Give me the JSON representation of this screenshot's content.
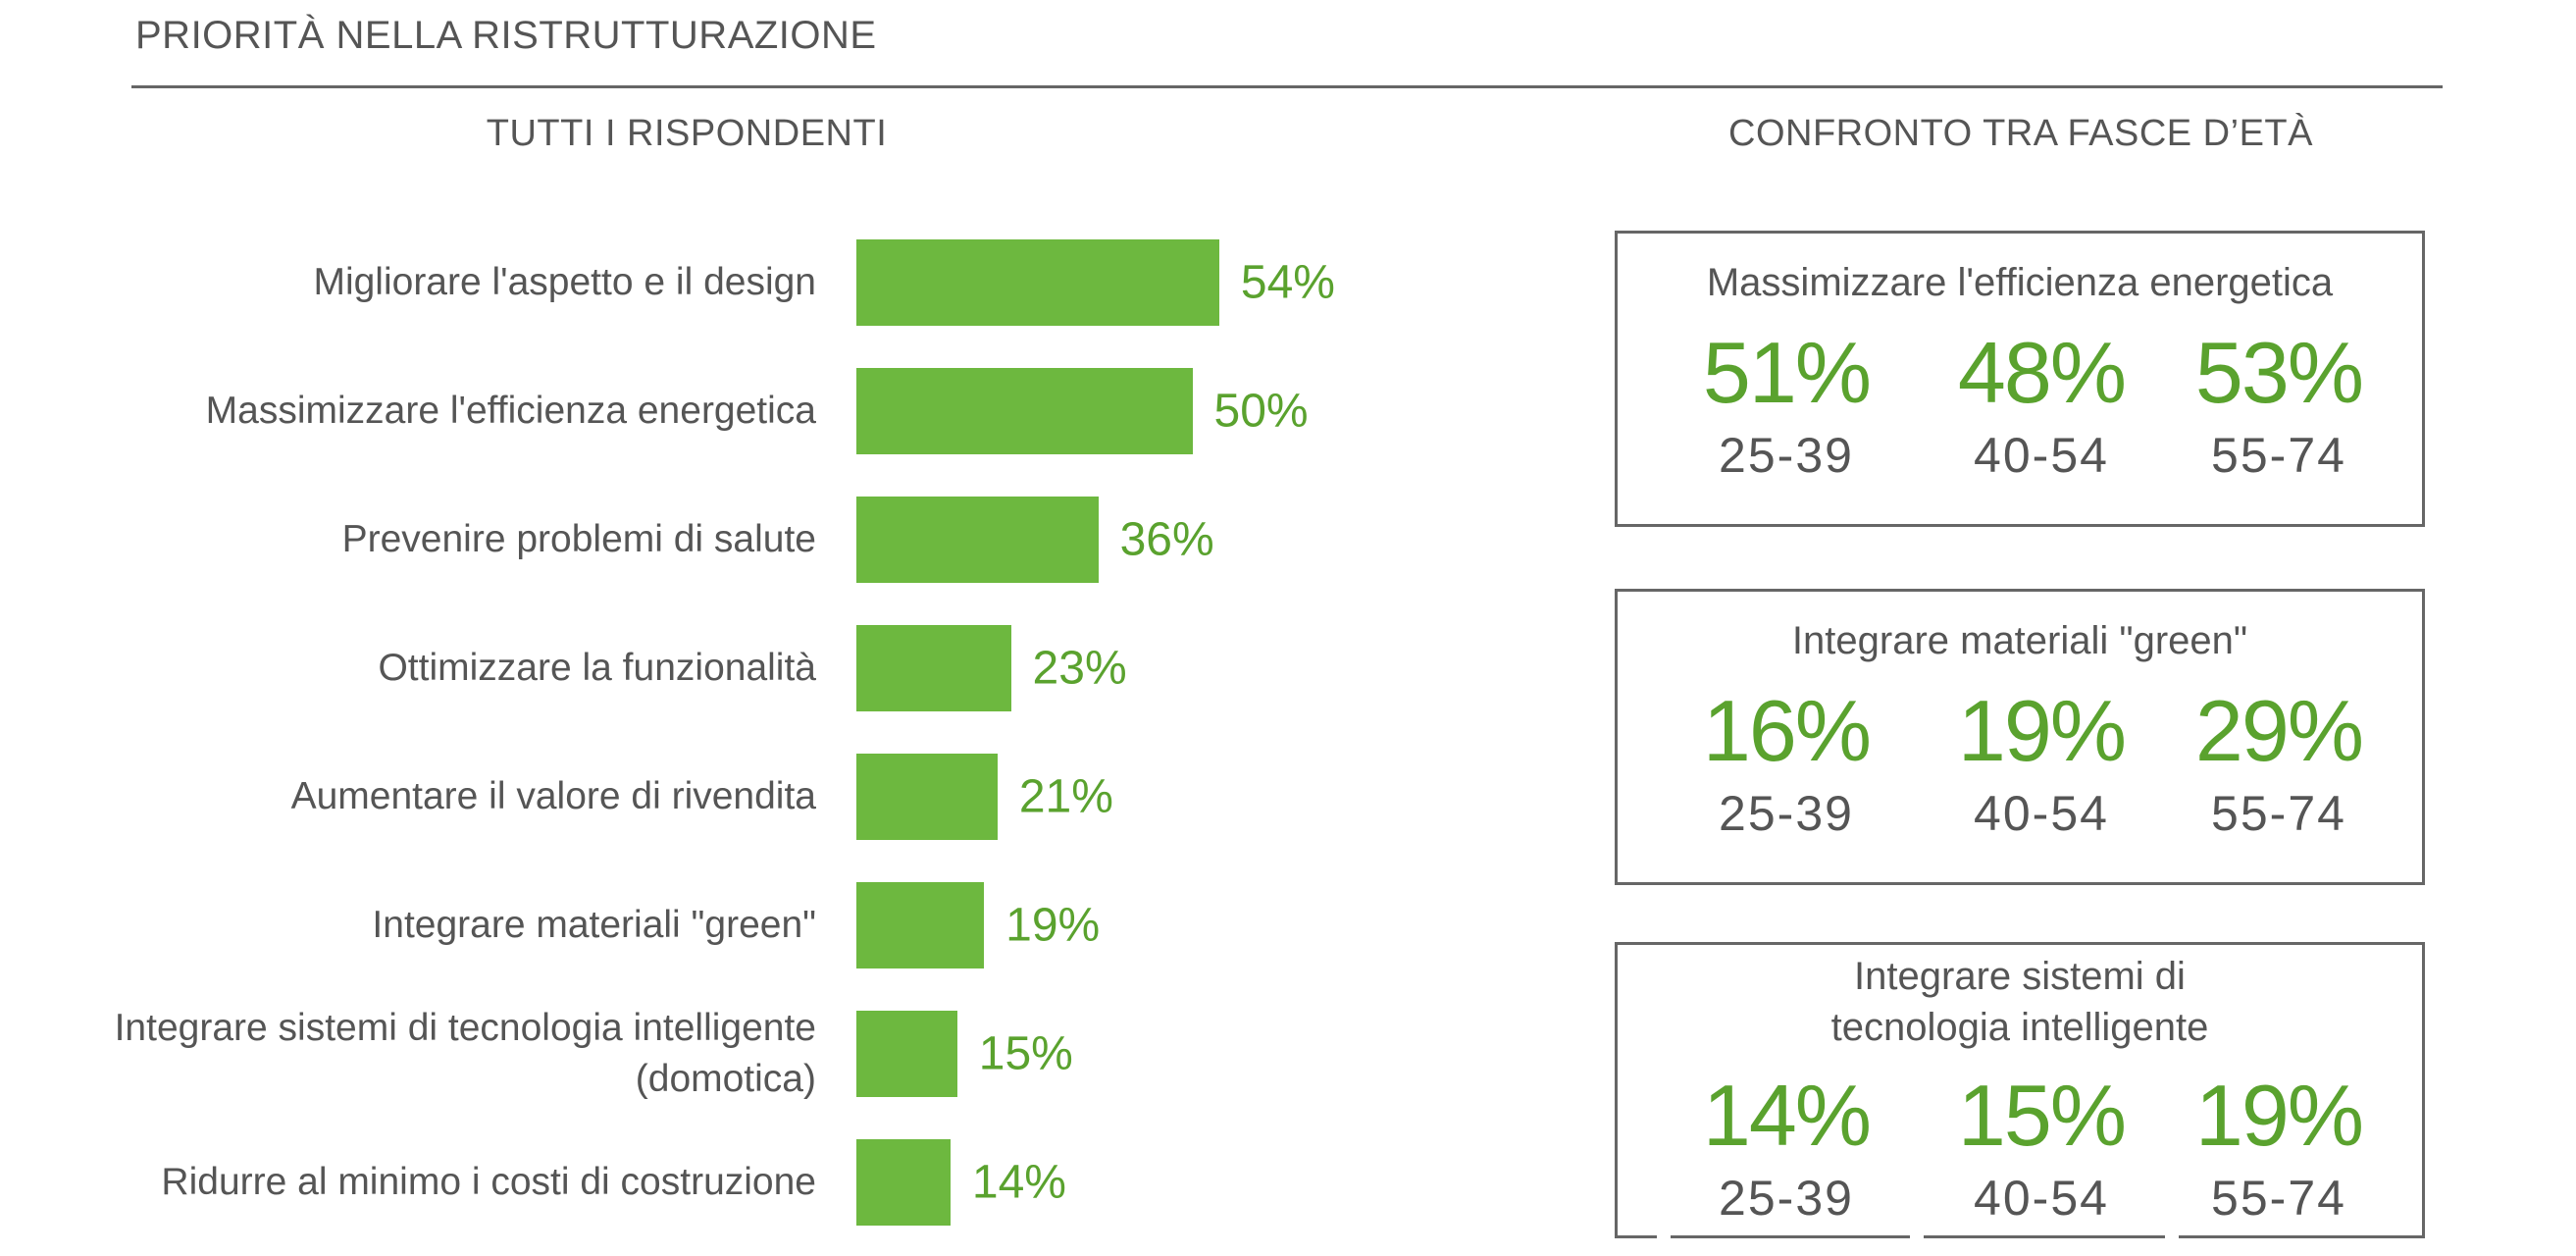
{
  "header": {
    "title": "PRIORITÀ NELLA RISTRUTTURAZIONE",
    "left_section": "TUTTI I RISPONDENTI",
    "right_section": "CONFRONTO TRA FASCE D’ETÀ"
  },
  "colors": {
    "bar": "#6db83f",
    "value_text": "#5aa22e",
    "text": "#555555",
    "border": "#666666"
  },
  "chart_data": [
    {
      "type": "bar",
      "orientation": "horizontal",
      "title": "TUTTI I RISPONDENTI",
      "categories": [
        "Migliorare l'aspetto e il design",
        "Massimizzare l'efficienza energetica",
        "Prevenire problemi di salute",
        "Ottimizzare la funzionalità",
        "Aumentare il valore di rivendita",
        "Integrare materiali \"green\"",
        "Integrare sistemi di tecnologia intelligente (domotica)",
        "Ridurre al minimo i costi di costruzione"
      ],
      "values": [
        54,
        50,
        36,
        23,
        21,
        19,
        15,
        14
      ],
      "value_labels": [
        "54%",
        "50%",
        "36%",
        "23%",
        "21%",
        "19%",
        "15%",
        "14%"
      ],
      "xlim": [
        0,
        100
      ],
      "grid": false,
      "legend": "none"
    },
    {
      "type": "table",
      "title": "CONFRONTO TRA FASCE D’ETÀ",
      "age_groups": [
        "25-39",
        "40-54",
        "55-74"
      ],
      "groups": [
        {
          "title": "Massimizzare l'efficienza energetica",
          "values": [
            51,
            48,
            53
          ],
          "labels": [
            "51%",
            "48%",
            "53%"
          ]
        },
        {
          "title": "Integrare materiali \"green\"",
          "values": [
            16,
            19,
            29
          ],
          "labels": [
            "16%",
            "19%",
            "29%"
          ]
        },
        {
          "title": "Integrare sistemi di tecnologia intelligente",
          "values": [
            14,
            15,
            19
          ],
          "labels": [
            "14%",
            "15%",
            "19%"
          ]
        }
      ]
    }
  ]
}
